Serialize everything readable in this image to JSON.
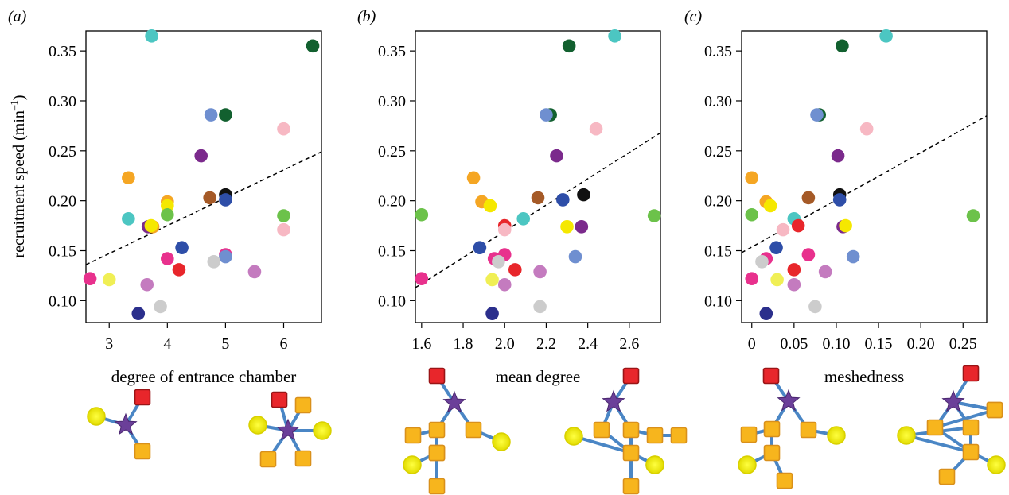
{
  "figure": {
    "ylabel": "recruitment speed (min",
    "ylabel_sup": "–1",
    "ylabel_close": ")"
  },
  "chart_data": [
    {
      "type": "scatter",
      "panel_label": "(a)",
      "xlabel": "degree of entrance chamber",
      "xlim": [
        2.6,
        6.65
      ],
      "ylim": [
        0.078,
        0.37
      ],
      "xticks": [
        3,
        4,
        5,
        6
      ],
      "xtick_labels": [
        "3",
        "4",
        "5",
        "6"
      ],
      "yticks": [
        0.1,
        0.15,
        0.2,
        0.25,
        0.3,
        0.35
      ],
      "ytick_labels": [
        "0.10",
        "0.15",
        "0.20",
        "0.25",
        "0.30",
        "0.35"
      ],
      "trend_line": [
        [
          2.6,
          0.136
        ],
        [
          6.65,
          0.249
        ]
      ],
      "points": [
        {
          "x": 3.73,
          "y": 0.365,
          "color": "#4cc6c2"
        },
        {
          "x": 6.5,
          "y": 0.355,
          "color": "#12602f"
        },
        {
          "x": 4.75,
          "y": 0.286,
          "color": "#6f8fd0"
        },
        {
          "x": 5.0,
          "y": 0.286,
          "color": "#12602f"
        },
        {
          "x": 6.0,
          "y": 0.272,
          "color": "#f7b8c3"
        },
        {
          "x": 4.58,
          "y": 0.245,
          "color": "#7b2a8c"
        },
        {
          "x": 3.33,
          "y": 0.223,
          "color": "#f5a623"
        },
        {
          "x": 5.0,
          "y": 0.206,
          "color": "#111111"
        },
        {
          "x": 4.73,
          "y": 0.203,
          "color": "#a55a27"
        },
        {
          "x": 5.0,
          "y": 0.201,
          "color": "#2e4ea8"
        },
        {
          "x": 4.0,
          "y": 0.199,
          "color": "#f5a623"
        },
        {
          "x": 4.0,
          "y": 0.195,
          "color": "#f5e800"
        },
        {
          "x": 4.0,
          "y": 0.186,
          "color": "#6cc24a"
        },
        {
          "x": 6.0,
          "y": 0.185,
          "color": "#6cc24a"
        },
        {
          "x": 3.33,
          "y": 0.182,
          "color": "#4cc6c2"
        },
        {
          "x": 3.67,
          "y": 0.174,
          "color": "#7b2a8c"
        },
        {
          "x": 3.75,
          "y": 0.174,
          "color": "#f5a623"
        },
        {
          "x": 3.72,
          "y": 0.175,
          "color": "#f5e800"
        },
        {
          "x": 6.0,
          "y": 0.171,
          "color": "#f7b8c3"
        },
        {
          "x": 4.25,
          "y": 0.153,
          "color": "#2e4ea8"
        },
        {
          "x": 5.0,
          "y": 0.146,
          "color": "#e8318d"
        },
        {
          "x": 5.0,
          "y": 0.144,
          "color": "#6f8fd0"
        },
        {
          "x": 4.0,
          "y": 0.142,
          "color": "#e8318d"
        },
        {
          "x": 4.8,
          "y": 0.139,
          "color": "#cccccc"
        },
        {
          "x": 4.2,
          "y": 0.131,
          "color": "#e8262b"
        },
        {
          "x": 5.5,
          "y": 0.129,
          "color": "#c47bbf"
        },
        {
          "x": 2.67,
          "y": 0.122,
          "color": "#e8318d"
        },
        {
          "x": 3.0,
          "y": 0.121,
          "color": "#f0ef55"
        },
        {
          "x": 3.65,
          "y": 0.116,
          "color": "#c47bbf"
        },
        {
          "x": 3.88,
          "y": 0.094,
          "color": "#cccccc"
        },
        {
          "x": 3.5,
          "y": 0.087,
          "color": "#2b2f8c"
        }
      ]
    },
    {
      "type": "scatter",
      "panel_label": "(b)",
      "xlabel": "mean degree",
      "xlim": [
        1.57,
        2.75
      ],
      "ylim": [
        0.078,
        0.37
      ],
      "xticks": [
        1.6,
        1.8,
        2.0,
        2.2,
        2.4,
        2.6
      ],
      "xtick_labels": [
        "1.6",
        "1.8",
        "2.0",
        "2.2",
        "2.4",
        "2.6"
      ],
      "yticks": [
        0.1,
        0.15,
        0.2,
        0.25,
        0.3,
        0.35
      ],
      "ytick_labels": [
        "0.10",
        "0.15",
        "0.20",
        "0.25",
        "0.30",
        "0.35"
      ],
      "trend_line": [
        [
          1.57,
          0.113
        ],
        [
          2.75,
          0.268
        ]
      ],
      "points": [
        {
          "x": 2.53,
          "y": 0.365,
          "color": "#4cc6c2"
        },
        {
          "x": 2.31,
          "y": 0.355,
          "color": "#12602f"
        },
        {
          "x": 2.22,
          "y": 0.286,
          "color": "#12602f"
        },
        {
          "x": 2.2,
          "y": 0.286,
          "color": "#6f8fd0"
        },
        {
          "x": 2.44,
          "y": 0.272,
          "color": "#f7b8c3"
        },
        {
          "x": 2.25,
          "y": 0.245,
          "color": "#7b2a8c"
        },
        {
          "x": 1.85,
          "y": 0.223,
          "color": "#f5a623"
        },
        {
          "x": 2.38,
          "y": 0.206,
          "color": "#111111"
        },
        {
          "x": 2.16,
          "y": 0.203,
          "color": "#a55a27"
        },
        {
          "x": 2.28,
          "y": 0.201,
          "color": "#2e4ea8"
        },
        {
          "x": 1.89,
          "y": 0.199,
          "color": "#f5a623"
        },
        {
          "x": 1.93,
          "y": 0.195,
          "color": "#f5e800"
        },
        {
          "x": 1.6,
          "y": 0.186,
          "color": "#6cc24a"
        },
        {
          "x": 2.72,
          "y": 0.185,
          "color": "#6cc24a"
        },
        {
          "x": 2.09,
          "y": 0.182,
          "color": "#4cc6c2"
        },
        {
          "x": 2.0,
          "y": 0.175,
          "color": "#e8262b"
        },
        {
          "x": 2.37,
          "y": 0.174,
          "color": "#7b2a8c"
        },
        {
          "x": 2.3,
          "y": 0.174,
          "color": "#f5e800"
        },
        {
          "x": 2.0,
          "y": 0.171,
          "color": "#f7b8c3"
        },
        {
          "x": 1.88,
          "y": 0.153,
          "color": "#2e4ea8"
        },
        {
          "x": 2.0,
          "y": 0.146,
          "color": "#e8318d"
        },
        {
          "x": 2.34,
          "y": 0.144,
          "color": "#6f8fd0"
        },
        {
          "x": 1.95,
          "y": 0.142,
          "color": "#e8318d"
        },
        {
          "x": 1.97,
          "y": 0.139,
          "color": "#cccccc"
        },
        {
          "x": 2.05,
          "y": 0.131,
          "color": "#e8262b"
        },
        {
          "x": 2.17,
          "y": 0.129,
          "color": "#c47bbf"
        },
        {
          "x": 1.6,
          "y": 0.122,
          "color": "#e8318d"
        },
        {
          "x": 1.94,
          "y": 0.121,
          "color": "#f0ef55"
        },
        {
          "x": 2.0,
          "y": 0.116,
          "color": "#c47bbf"
        },
        {
          "x": 2.17,
          "y": 0.094,
          "color": "#cccccc"
        },
        {
          "x": 1.94,
          "y": 0.087,
          "color": "#2b2f8c"
        }
      ]
    },
    {
      "type": "scatter",
      "panel_label": "(c)",
      "xlabel": "meshedness",
      "xlim": [
        -0.012,
        0.278
      ],
      "ylim": [
        0.078,
        0.37
      ],
      "xticks": [
        0,
        0.05,
        0.1,
        0.15,
        0.2,
        0.25
      ],
      "xtick_labels": [
        "0",
        "0.05",
        "0.10",
        "0.15",
        "0.20",
        "0.25"
      ],
      "yticks": [
        0.1,
        0.15,
        0.2,
        0.25,
        0.3,
        0.35
      ],
      "ytick_labels": [
        "0.10",
        "0.15",
        "0.20",
        "0.25",
        "0.30",
        "0.35"
      ],
      "trend_line": [
        [
          -0.012,
          0.148
        ],
        [
          0.278,
          0.285
        ]
      ],
      "points": [
        {
          "x": 0.159,
          "y": 0.365,
          "color": "#4cc6c2"
        },
        {
          "x": 0.107,
          "y": 0.355,
          "color": "#12602f"
        },
        {
          "x": 0.08,
          "y": 0.286,
          "color": "#12602f"
        },
        {
          "x": 0.077,
          "y": 0.286,
          "color": "#6f8fd0"
        },
        {
          "x": 0.136,
          "y": 0.272,
          "color": "#f7b8c3"
        },
        {
          "x": 0.102,
          "y": 0.245,
          "color": "#7b2a8c"
        },
        {
          "x": 0.0,
          "y": 0.223,
          "color": "#f5a623"
        },
        {
          "x": 0.104,
          "y": 0.206,
          "color": "#111111"
        },
        {
          "x": 0.067,
          "y": 0.203,
          "color": "#a55a27"
        },
        {
          "x": 0.104,
          "y": 0.201,
          "color": "#2e4ea8"
        },
        {
          "x": 0.017,
          "y": 0.199,
          "color": "#f5a623"
        },
        {
          "x": 0.022,
          "y": 0.195,
          "color": "#f5e800"
        },
        {
          "x": 0.0,
          "y": 0.186,
          "color": "#6cc24a"
        },
        {
          "x": 0.262,
          "y": 0.185,
          "color": "#6cc24a"
        },
        {
          "x": 0.05,
          "y": 0.182,
          "color": "#4cc6c2"
        },
        {
          "x": 0.055,
          "y": 0.175,
          "color": "#e8262b"
        },
        {
          "x": 0.108,
          "y": 0.174,
          "color": "#7b2a8c"
        },
        {
          "x": 0.111,
          "y": 0.175,
          "color": "#f5e800"
        },
        {
          "x": 0.037,
          "y": 0.171,
          "color": "#f7b8c3"
        },
        {
          "x": 0.029,
          "y": 0.153,
          "color": "#2e4ea8"
        },
        {
          "x": 0.067,
          "y": 0.146,
          "color": "#e8318d"
        },
        {
          "x": 0.12,
          "y": 0.144,
          "color": "#6f8fd0"
        },
        {
          "x": 0.017,
          "y": 0.142,
          "color": "#e8318d"
        },
        {
          "x": 0.012,
          "y": 0.139,
          "color": "#cccccc"
        },
        {
          "x": 0.05,
          "y": 0.131,
          "color": "#e8262b"
        },
        {
          "x": 0.087,
          "y": 0.129,
          "color": "#c47bbf"
        },
        {
          "x": 0.0,
          "y": 0.122,
          "color": "#e8318d"
        },
        {
          "x": 0.03,
          "y": 0.121,
          "color": "#f0ef55"
        },
        {
          "x": 0.05,
          "y": 0.116,
          "color": "#c47bbf"
        },
        {
          "x": 0.075,
          "y": 0.094,
          "color": "#cccccc"
        },
        {
          "x": 0.017,
          "y": 0.087,
          "color": "#2b2f8c"
        }
      ]
    }
  ]
}
